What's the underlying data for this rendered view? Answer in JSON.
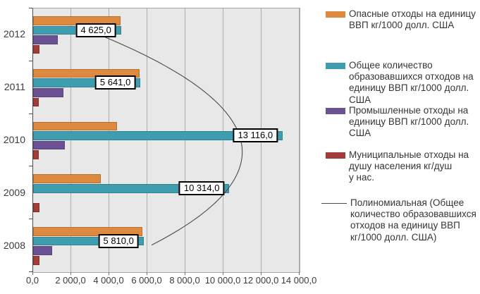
{
  "chart_data": {
    "type": "bar",
    "orientation": "horizontal",
    "title": "",
    "categories": [
      "2012",
      "2011",
      "2010",
      "2009",
      "2008"
    ],
    "xlim": [
      0,
      14000
    ],
    "grid": "vertical",
    "plot_bg_color": "#E9E8E8",
    "grid_color": "#ADADAD",
    "x_ticks": [
      {
        "value": 0,
        "label": "0,0"
      },
      {
        "value": 2000,
        "label": "2 000,0"
      },
      {
        "value": 4000,
        "label": "4 000,0"
      },
      {
        "value": 6000,
        "label": "6 000,0"
      },
      {
        "value": 8000,
        "label": "8 000,0"
      },
      {
        "value": 10000,
        "label": "10 000,0"
      },
      {
        "value": 12000,
        "label": "12 000,0"
      },
      {
        "value": 14000,
        "label": "14 000,0"
      }
    ],
    "series": [
      {
        "key": "hazardous",
        "name": "Опасные отходы на единицу ВВП кг/1000 долл. США",
        "color": "#DE8A3E",
        "values": [
          4600,
          5600,
          4400,
          3550,
          5750
        ]
      },
      {
        "key": "total",
        "name": "Общее количество образовавшихся отходов на единицу ВВП  кг/1000 долл. США",
        "color": "#3E9EB0",
        "values": [
          4625,
          5641,
          13116,
          10314,
          5810
        ],
        "data_labels": [
          "4 625,0",
          "5 641,0",
          "13 116,0",
          "10 314,0",
          "5 810,0"
        ]
      },
      {
        "key": "industrial",
        "name": "Промышленные отходы на единицу ВВП  кг/1000 долл. США",
        "color": "#6C5295",
        "values": [
          1300,
          1600,
          1650,
          0,
          1000
        ]
      },
      {
        "key": "municipal",
        "name": "Муниципальные отходы на душу населения  кг/душ у нас.",
        "color": "#A33C38",
        "values": [
          330,
          300,
          280,
          330,
          350
        ]
      }
    ],
    "trendline": {
      "name": "Полиномиальная (Общее количество образовавшихся отходов на единицу ВВП кг/1000 долл. США)",
      "applies_to_series": "total",
      "color": "#4A4A4A",
      "fitted_values_by_category": [
        3436,
        8712,
        10942,
        10126,
        6264
      ]
    },
    "legend_position": "right"
  },
  "legend": {
    "items": [
      {
        "swatch": "bar",
        "color": "#DE8A3E",
        "name": "hazardous-waste-legend",
        "lines": [
          "Опасные отходы на единицу",
          "ВВП кг/1000 долл. США"
        ]
      },
      {
        "swatch": "bar",
        "color": "#3E9EB0",
        "name": "total-waste-legend",
        "lines": [
          "Общее количество",
          "образовавшихся отходов на",
          "единицу ВВП  кг/1000 долл.",
          "США"
        ]
      },
      {
        "swatch": "bar",
        "color": "#6C5295",
        "name": "industrial-waste-legend",
        "lines": [
          "Промышленные отходы на",
          "единицу ВВП  кг/1000 долл.",
          "США"
        ]
      },
      {
        "swatch": "bar",
        "color": "#A33C38",
        "name": "municipal-waste-legend",
        "lines": [
          "Муниципальные отходы на",
          "душу населения  кг/душ",
          "у нас."
        ]
      },
      {
        "swatch": "line",
        "color": "#4A4A4A",
        "name": "polynomial-trend-legend",
        "lines": [
          "Полиномиальная (Общее",
          "количество образовавшихся",
          "отходов на единицу ВВП",
          "кг/1000 долл. США)"
        ]
      }
    ]
  }
}
